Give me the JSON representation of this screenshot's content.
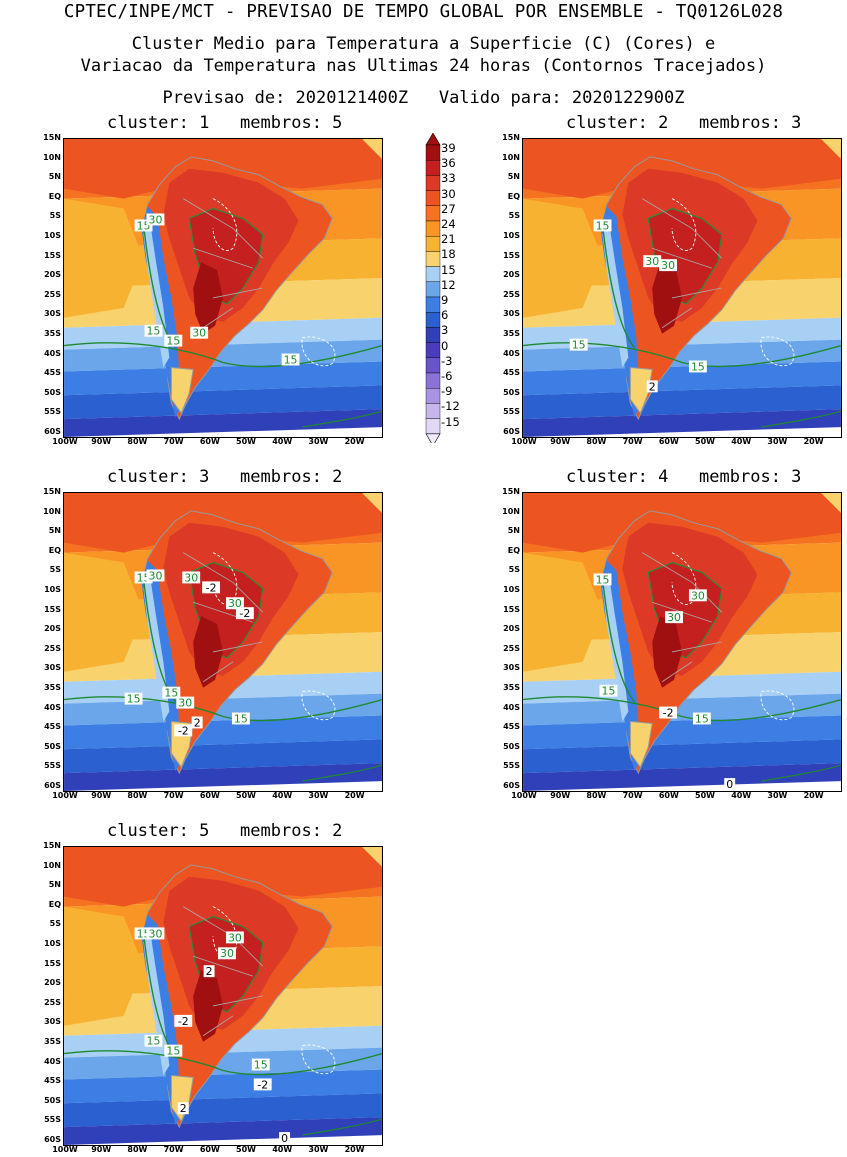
{
  "header": {
    "line1": "CPTEC/INPE/MCT - PREVISAO DE TEMPO GLOBAL POR ENSEMBLE - TQ0126L028",
    "line2": "Cluster Medio para Temperatura a Superficie (C) (Cores) e",
    "line3": "Variacao da Temperatura nas Ultimas 24 horas (Contornos Tracejados)",
    "line4": "Previsao de: 2020121400Z   Valido para: 2020122900Z"
  },
  "lat_labels": [
    "15N",
    "10N",
    "5N",
    "EQ",
    "5S",
    "10S",
    "15S",
    "20S",
    "25S",
    "30S",
    "35S",
    "40S",
    "45S",
    "50S",
    "55S",
    "60S"
  ],
  "lon_labels": [
    "100W",
    "90W",
    "80W",
    "70W",
    "60W",
    "50W",
    "40W",
    "30W",
    "20W"
  ],
  "colorbar": {
    "levels": [
      "39",
      "36",
      "33",
      "30",
      "27",
      "24",
      "21",
      "18",
      "15",
      "12",
      "9",
      "6",
      "3",
      "0",
      "-3",
      "-6",
      "-9",
      "-12",
      "-15"
    ],
    "colors": [
      "#a01010",
      "#c42020",
      "#dc3a26",
      "#ec5422",
      "#f57220",
      "#f89524",
      "#f8b232",
      "#f8d26c",
      "#a8d0f4",
      "#6ca6ea",
      "#3c7ee4",
      "#2a60d0",
      "#3040b8",
      "#4a3cbc",
      "#6a54cc",
      "#8a72d8",
      "#a894e2",
      "#c6b6ec",
      "#e2d8f6"
    ]
  },
  "panels": [
    {
      "title": "cluster: 1   membros: 5",
      "labels": [
        {
          "t": "15",
          "x": 80,
          "y": 88
        },
        {
          "t": "30",
          "x": 92,
          "y": 82
        },
        {
          "t": "15",
          "x": 90,
          "y": 194
        },
        {
          "t": "15",
          "x": 110,
          "y": 204
        },
        {
          "t": "30",
          "x": 136,
          "y": 196
        },
        {
          "t": "15",
          "x": 228,
          "y": 223
        }
      ]
    },
    {
      "title": "cluster: 2   membros: 3",
      "labels": [
        {
          "t": "15",
          "x": 80,
          "y": 88
        },
        {
          "t": "30",
          "x": 130,
          "y": 124
        },
        {
          "t": "30",
          "x": 146,
          "y": 128
        },
        {
          "t": "15",
          "x": 56,
          "y": 208
        },
        {
          "t": "15",
          "x": 176,
          "y": 230
        },
        {
          "t": "2",
          "x": 130,
          "y": 250
        }
      ]
    },
    {
      "title": "cluster: 3   membros: 2",
      "labels": [
        {
          "t": "15",
          "x": 80,
          "y": 86
        },
        {
          "t": "30",
          "x": 92,
          "y": 84
        },
        {
          "t": "30",
          "x": 128,
          "y": 86
        },
        {
          "t": "-2",
          "x": 148,
          "y": 96
        },
        {
          "t": "30",
          "x": 172,
          "y": 112
        },
        {
          "t": "-2",
          "x": 182,
          "y": 122
        },
        {
          "t": "15",
          "x": 70,
          "y": 208
        },
        {
          "t": "15",
          "x": 108,
          "y": 202
        },
        {
          "t": "30",
          "x": 122,
          "y": 212
        },
        {
          "t": "2",
          "x": 134,
          "y": 232
        },
        {
          "t": "-2",
          "x": 120,
          "y": 240
        },
        {
          "t": "15",
          "x": 178,
          "y": 228
        }
      ]
    },
    {
      "title": "cluster: 4   membros: 3",
      "labels": [
        {
          "t": "15",
          "x": 80,
          "y": 88
        },
        {
          "t": "30",
          "x": 176,
          "y": 104
        },
        {
          "t": "30",
          "x": 152,
          "y": 126
        },
        {
          "t": "15",
          "x": 86,
          "y": 200
        },
        {
          "t": "-2",
          "x": 146,
          "y": 222
        },
        {
          "t": "15",
          "x": 180,
          "y": 228
        },
        {
          "t": "0",
          "x": 208,
          "y": 294
        }
      ]
    },
    {
      "title": "cluster: 5   membros: 2",
      "labels": [
        {
          "t": "15",
          "x": 80,
          "y": 88
        },
        {
          "t": "30",
          "x": 92,
          "y": 88
        },
        {
          "t": "30",
          "x": 172,
          "y": 92
        },
        {
          "t": "30",
          "x": 164,
          "y": 108
        },
        {
          "t": "2",
          "x": 146,
          "y": 126
        },
        {
          "t": "-2",
          "x": 120,
          "y": 176
        },
        {
          "t": "15",
          "x": 90,
          "y": 196
        },
        {
          "t": "15",
          "x": 110,
          "y": 206
        },
        {
          "t": "15",
          "x": 198,
          "y": 220
        },
        {
          "t": "-2",
          "x": 200,
          "y": 240
        },
        {
          "t": "2",
          "x": 120,
          "y": 264
        },
        {
          "t": "0",
          "x": 222,
          "y": 294
        }
      ]
    }
  ]
}
